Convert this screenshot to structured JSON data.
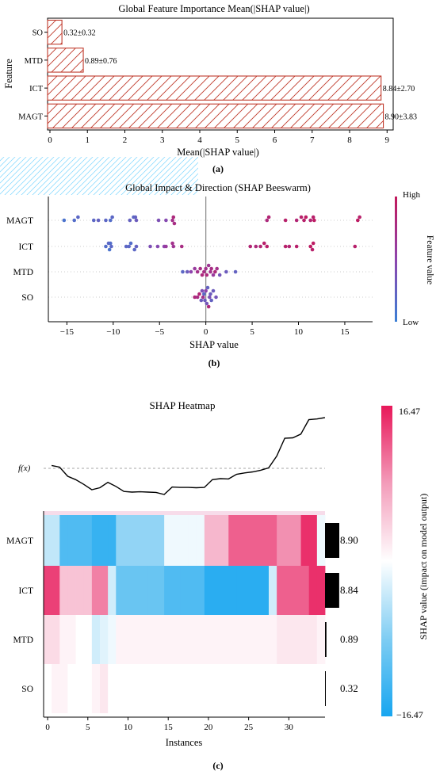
{
  "panel_labels": {
    "a": "(a)",
    "b": "(b)",
    "c": "(c)"
  },
  "chart_data": [
    {
      "type": "bar",
      "orientation": "horizontal",
      "title": "Global Feature Importance Mean(|SHAP value|)",
      "xlabel": "Mean(|SHAP value|)",
      "ylabel": "Feature",
      "categories": [
        "SO",
        "MTD",
        "ICT",
        "MAGT"
      ],
      "values": [
        0.32,
        0.89,
        8.84,
        8.9
      ],
      "errors": [
        0.32,
        0.76,
        2.7,
        3.83
      ],
      "bar_labels": [
        "0.32±0.32",
        "0.89±0.76",
        "8.84±2.70",
        "8.90±3.83"
      ],
      "xlim": [
        0,
        9
      ],
      "xticks": [
        "0",
        "1",
        "2",
        "3",
        "4",
        "5",
        "6",
        "7",
        "8",
        "9"
      ],
      "colors": {
        "edge": "#c0392b",
        "hatch": "#c0392b"
      }
    },
    {
      "type": "scatter",
      "title": "Global Impact & Direction (SHAP Beeswarm)",
      "xlabel": "SHAP value",
      "categories": [
        "MAGT",
        "ICT",
        "MTD",
        "SO"
      ],
      "xlim": [
        -17,
        18
      ],
      "xticks": [
        "−15",
        "−10",
        "−5",
        "0",
        "5",
        "10",
        "15"
      ],
      "colorbar": {
        "label": "Feature value",
        "high": "High",
        "low": "Low"
      },
      "colors": {
        "low": "#3a7fd5",
        "mid": "#8e44ad",
        "high": "#c2185b"
      },
      "series": [
        {
          "name": "MAGT",
          "values": [
            -15.3,
            -14.2,
            -13.8,
            -12.1,
            -11.6,
            -10.8,
            -10.3,
            -10.1,
            -8.2,
            -7.8,
            -7.5,
            -7.6,
            -5.1,
            -4.3,
            -3.6,
            -3.5,
            -3.4,
            6.6,
            6.8,
            8.6,
            9.8,
            10.3,
            10.6,
            10.8,
            11.3,
            11.6,
            11.7,
            16.4,
            16.6
          ],
          "levels": [
            0.1,
            0.15,
            0.2,
            0.2,
            0.25,
            0.2,
            0.15,
            0.2,
            0.25,
            0.2,
            0.3,
            0.25,
            0.4,
            0.45,
            0.7,
            0.8,
            0.75,
            0.8,
            0.85,
            0.9,
            0.85,
            0.9,
            0.9,
            0.95,
            0.85,
            0.9,
            0.95,
            0.95,
            0.9
          ]
        },
        {
          "name": "ICT",
          "values": [
            -10.8,
            -10.5,
            -10.4,
            -10.2,
            -10.3,
            -8.6,
            -8.3,
            -8.1,
            -7.7,
            -7.5,
            -6.0,
            -5.2,
            -4.5,
            -4.3,
            -3.5,
            -3.6,
            -2.6,
            4.8,
            5.4,
            5.9,
            6.3,
            6.6,
            8.6,
            9.0,
            9.8,
            11.3,
            11.6,
            11.5,
            16.1
          ],
          "levels": [
            0.15,
            0.2,
            0.1,
            0.2,
            0.15,
            0.2,
            0.2,
            0.15,
            0.2,
            0.25,
            0.4,
            0.45,
            0.5,
            0.6,
            0.65,
            0.7,
            0.75,
            0.85,
            0.8,
            0.85,
            0.9,
            0.9,
            0.9,
            0.85,
            0.9,
            0.95,
            0.95,
            0.9,
            0.9
          ]
        },
        {
          "name": "MTD",
          "values": [
            -2.5,
            -2.0,
            -1.6,
            -1.2,
            -0.9,
            -0.6,
            -0.4,
            -0.2,
            0.0,
            0.1,
            0.3,
            0.5,
            0.6,
            0.8,
            1.0,
            1.2,
            1.5,
            2.2,
            3.2
          ],
          "levels": [
            0.2,
            0.3,
            0.5,
            0.6,
            0.7,
            0.75,
            0.8,
            0.75,
            0.7,
            0.8,
            0.65,
            0.7,
            0.75,
            0.6,
            0.8,
            0.7,
            0.35,
            0.3,
            0.25
          ]
        },
        {
          "name": "SO",
          "values": [
            -1.2,
            -0.9,
            -0.7,
            -0.5,
            -0.4,
            -0.3,
            -0.2,
            -0.1,
            0.0,
            0.1,
            0.2,
            0.3,
            0.4,
            0.5,
            0.6,
            0.8,
            1.1
          ],
          "levels": [
            0.8,
            0.75,
            0.85,
            0.3,
            0.4,
            0.7,
            0.2,
            0.3,
            0.5,
            0.35,
            0.25,
            0.8,
            0.4,
            0.3,
            0.25,
            0.3,
            0.35
          ]
        }
      ]
    },
    {
      "type": "heatmap",
      "title": "SHAP Heatmap",
      "xlabel": "Instances",
      "f_label": "f(x)",
      "categories": [
        "MAGT",
        "ICT",
        "MTD",
        "SO"
      ],
      "importance_labels": [
        "8.90",
        "8.84",
        "0.89",
        "0.32"
      ],
      "importance_values": [
        8.9,
        8.84,
        0.89,
        0.32
      ],
      "xticks": [
        "0",
        "5",
        "10",
        "15",
        "20",
        "25",
        "30"
      ],
      "colorbar": {
        "label": "SHAP value (impact on model output)",
        "max_label": "16.47",
        "min_label": "−16.47",
        "vmax": 16.47,
        "vmin": -16.47
      },
      "fx": [
        9.2,
        8.7,
        6.0,
        5.0,
        3.6,
        2.0,
        2.6,
        4.2,
        3.0,
        1.5,
        1.3,
        1.4,
        1.3,
        1.2,
        0.6,
        2.8,
        2.7,
        2.7,
        2.6,
        2.7,
        5.0,
        5.3,
        5.2,
        6.6,
        7.0,
        7.3,
        7.8,
        8.5,
        12.0,
        17.3,
        17.4,
        18.5,
        22.8,
        23.0,
        23.4
      ],
      "rows": [
        [
          -4,
          -4,
          -12,
          -12,
          -12,
          -12,
          -14,
          -14,
          -14,
          -7,
          -7,
          -7,
          -7,
          -7,
          -7,
          -1,
          -1,
          -1,
          -1,
          -1,
          6,
          6,
          6,
          12,
          12,
          12,
          12,
          12,
          12,
          9,
          9,
          9,
          15,
          15,
          -1
        ],
        [
          14,
          14,
          5,
          5,
          5,
          5,
          10,
          10,
          -3,
          -10,
          -10,
          -10,
          -10,
          -10,
          -10,
          -12,
          -12,
          -12,
          -12,
          -12,
          -15,
          -15,
          -15,
          -15,
          -15,
          -15,
          -15,
          -15,
          -3,
          12,
          12,
          12,
          12,
          15,
          15
        ],
        [
          3,
          3,
          1,
          1,
          0,
          0,
          -3,
          -2,
          -1,
          1,
          1,
          1,
          1,
          1,
          1,
          1,
          1,
          1,
          1,
          1,
          1,
          1,
          1,
          1,
          1,
          1,
          1,
          1,
          1,
          2,
          2,
          2,
          2,
          2,
          1
        ],
        [
          0,
          1,
          1,
          0,
          0,
          0,
          1,
          2,
          0,
          0,
          0,
          0,
          0,
          0,
          0,
          0,
          0,
          0,
          0,
          0,
          0,
          0,
          0,
          0,
          0,
          0,
          0,
          0,
          0,
          0,
          0,
          0,
          0,
          0,
          0
        ]
      ]
    }
  ]
}
